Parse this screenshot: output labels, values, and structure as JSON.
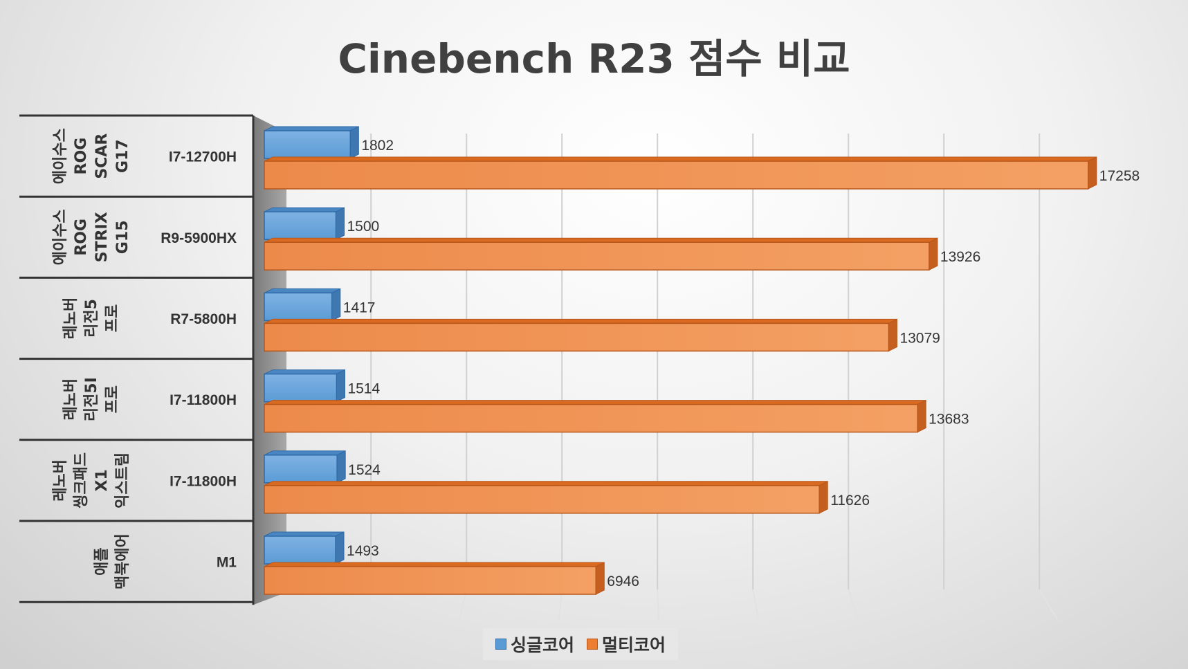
{
  "chart_data": {
    "type": "bar",
    "orientation": "horizontal",
    "title": "Cinebench R23 점수 비교",
    "categories": [
      {
        "group": [
          "에이수스",
          "ROG",
          "SCAR",
          "G17"
        ],
        "cpu": "I7-12700H"
      },
      {
        "group": [
          "에이수스",
          "ROG",
          "STRIX",
          "G15"
        ],
        "cpu": "R9-5900HX"
      },
      {
        "group": [
          "레노버",
          "리전5",
          "프로"
        ],
        "cpu": "R7-5800H"
      },
      {
        "group": [
          "레노버",
          "리전5I",
          "프로"
        ],
        "cpu": "I7-11800H"
      },
      {
        "group": [
          "레노버",
          "씽크패드",
          "X1",
          "익스트림"
        ],
        "cpu": "I7-11800H"
      },
      {
        "group": [
          "애플",
          "맥북에어"
        ],
        "cpu": "M1"
      }
    ],
    "series": [
      {
        "name": "싱글코어",
        "color": "#5b9bd5",
        "values": [
          1802,
          1500,
          1417,
          1514,
          1524,
          1493
        ]
      },
      {
        "name": "멀티코어",
        "color": "#ed7d31",
        "values": [
          17258,
          13926,
          13079,
          13683,
          11626,
          6946
        ]
      }
    ],
    "xlim": [
      0,
      18000
    ],
    "grid": true,
    "legend": "bottom"
  }
}
